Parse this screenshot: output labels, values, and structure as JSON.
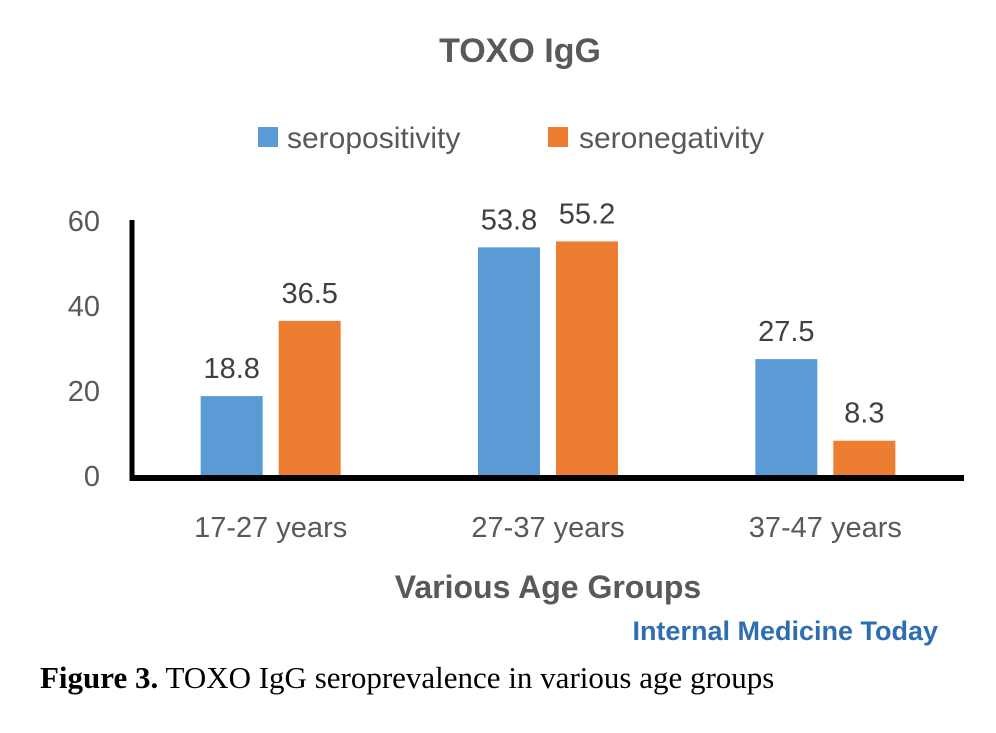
{
  "chart_data": {
    "type": "bar",
    "title": "TOXO IgG",
    "xlabel": "Various Age Groups",
    "ylabel": "",
    "categories": [
      "17-27 years",
      "27-37 years",
      "37-47 years"
    ],
    "series": [
      {
        "name": "seropositivity",
        "values": [
          18.8,
          53.8,
          27.5
        ],
        "labels": [
          "18.8",
          "53.8",
          "27.5"
        ],
        "color": "#5b9bd5"
      },
      {
        "name": "seronegativity",
        "values": [
          36.5,
          55.2,
          8.3
        ],
        "labels": [
          "36.5",
          "55.2",
          "8.3"
        ],
        "color": "#ed7d31"
      }
    ],
    "ylim": [
      0,
      60
    ],
    "yticks": [
      0,
      20,
      40,
      60
    ],
    "ytick_labels": [
      "0",
      "20",
      "40",
      "60"
    ],
    "grid": false,
    "legend": "top-center"
  },
  "watermark": "Internal Medicine Today",
  "caption": {
    "label": "Figure 3.",
    "text": " TOXO IgG seroprevalence in various age groups"
  }
}
